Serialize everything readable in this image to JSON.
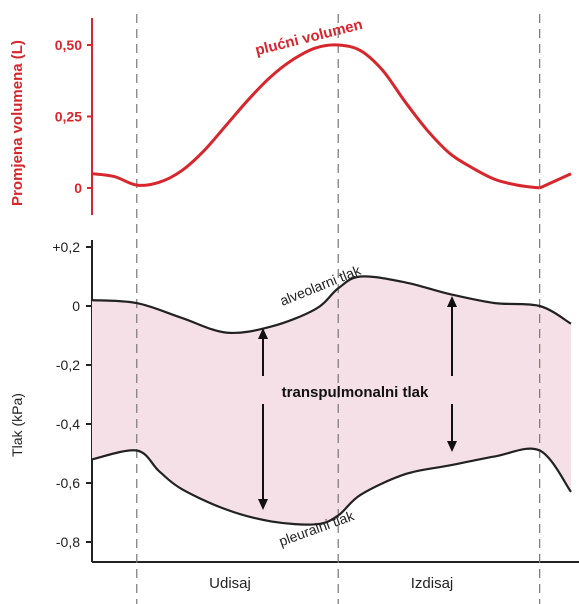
{
  "chart_data": [
    {
      "type": "line",
      "title": "",
      "ylabel": "Promjena volumena (L)",
      "ylim": [
        0,
        0.55
      ],
      "y_ticks": [
        {
          "value": 0.5,
          "label": "0,50"
        },
        {
          "value": 0.25,
          "label": "0,25"
        },
        {
          "value": 0,
          "label": "0"
        }
      ],
      "color": "#d7262c",
      "series": [
        {
          "name": "plućni volumen",
          "x": [
            0,
            0.5,
            1,
            1.5,
            2,
            2.5,
            3,
            3.5,
            4,
            4.5,
            5,
            5.5,
            6,
            6.5,
            7,
            7.5,
            8,
            8.5,
            9,
            9.5,
            10
          ],
          "values": [
            0.05,
            0.04,
            0.01,
            0.02,
            0.06,
            0.13,
            0.22,
            0.31,
            0.39,
            0.45,
            0.49,
            0.5,
            0.48,
            0.41,
            0.3,
            0.2,
            0.12,
            0.07,
            0.03,
            0.01,
            0.0
          ],
          "extra_x": [
            10,
            10.7
          ],
          "extra_values": [
            0.0,
            0.05
          ]
        }
      ]
    },
    {
      "type": "area",
      "title": "",
      "ylabel": "Tlak (kPa)",
      "ylim": [
        -0.88,
        0.2
      ],
      "y_ticks": [
        {
          "value": 0.2,
          "label": "+0,2"
        },
        {
          "value": 0,
          "label": "0"
        },
        {
          "value": -0.2,
          "label": "-0,2"
        },
        {
          "value": -0.4,
          "label": "-0,4"
        },
        {
          "value": -0.6,
          "label": "-0,6"
        },
        {
          "value": -0.8,
          "label": "-0,8"
        }
      ],
      "fill_color": "#f4e0e6",
      "fill_label": "transpulmonalni tlak",
      "series": [
        {
          "name": "alveolarni tlak",
          "x": [
            0,
            1,
            2,
            3,
            4,
            5,
            5.5,
            6,
            7,
            8,
            9,
            10,
            10.7
          ],
          "values": [
            0.02,
            0.01,
            -0.04,
            -0.09,
            -0.07,
            -0.01,
            0.06,
            0.1,
            0.08,
            0.04,
            0.01,
            0.0,
            -0.06
          ]
        },
        {
          "name": "pleuralni tlak",
          "x": [
            0,
            1,
            1.5,
            2,
            3,
            4,
            5,
            5.5,
            6,
            7,
            8,
            9,
            10,
            10.7
          ],
          "values": [
            -0.52,
            -0.49,
            -0.56,
            -0.62,
            -0.69,
            -0.73,
            -0.74,
            -0.71,
            -0.64,
            -0.57,
            -0.54,
            -0.51,
            -0.49,
            -0.63
          ]
        }
      ]
    }
  ],
  "phases": [
    "Udisaj",
    "Izdisaj"
  ]
}
